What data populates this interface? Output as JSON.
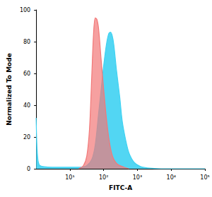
{
  "chart_data": {
    "type": "area",
    "x_label": "FITC-A",
    "y_label": "Normalized To Mode",
    "log": "x",
    "grid": false,
    "xlim": [
      1,
      100000
    ],
    "xticks": [
      {
        "value": 10,
        "label": "10¹"
      },
      {
        "value": 100,
        "label": "10²"
      },
      {
        "value": 1000,
        "label": "10³"
      },
      {
        "value": 10000,
        "label": "10⁴"
      },
      {
        "value": 100000,
        "label": "10⁵"
      }
    ],
    "ylim": [
      0,
      100
    ],
    "yticks": [
      0,
      20,
      40,
      60,
      80,
      100
    ],
    "series": [
      {
        "color": "#3fd2f2",
        "x": [
          1,
          1.1,
          1.3,
          3,
          10,
          20,
          31.6,
          44.7,
          56.2,
          70.8,
          89,
          100,
          120,
          141,
          158,
          178,
          200,
          240,
          300,
          355,
          450,
          560,
          800,
          1200,
          2000,
          5000,
          100000
        ],
        "values": [
          32,
          8,
          2,
          1,
          1,
          1,
          2,
          6,
          15,
          35,
          55,
          65,
          78,
          85,
          86,
          84,
          78,
          62,
          45,
          30,
          18,
          10,
          4,
          1.5,
          0.5,
          0,
          0
        ]
      },
      {
        "color": "#f27878",
        "x": [
          18.2,
          25.1,
          31.6,
          38,
          44.7,
          50.1,
          56.2,
          63.1,
          70.8,
          83.2,
          100,
          120,
          145,
          182,
          251,
          398,
          562
        ],
        "values": [
          0,
          2,
          8,
          25,
          60,
          85,
          95,
          94,
          88,
          70,
          50,
          32,
          18,
          8,
          3,
          1,
          0
        ]
      }
    ]
  }
}
